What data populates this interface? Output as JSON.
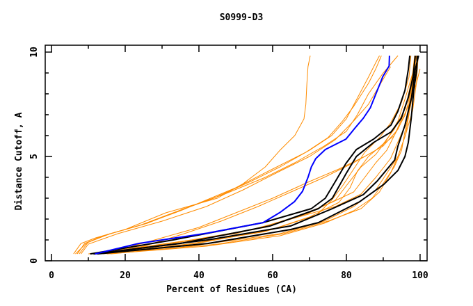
{
  "chart_data": {
    "type": "line",
    "title": "S0999-D3",
    "xlabel": "Percent of Residues (CA)",
    "ylabel": "Distance Cutoff, A",
    "xlim": [
      -1.7,
      101.9
    ],
    "ylim": [
      0,
      10.33
    ],
    "xticks": [
      0,
      20,
      40,
      60,
      80,
      100
    ],
    "xminor": [
      10,
      30,
      50,
      70,
      90
    ],
    "yticks": [
      0,
      5,
      10
    ],
    "yminor": [
      1,
      2,
      3,
      4,
      6,
      7,
      8,
      9
    ],
    "grid": false,
    "colors": {
      "orange": "#ff8c00",
      "black": "#000000",
      "blue": "#0000ff"
    },
    "series": [
      {
        "color": "orange",
        "points": [
          [
            6,
            0.33
          ],
          [
            8,
            0.83
          ],
          [
            12,
            1.1
          ],
          [
            20,
            1.5
          ],
          [
            31,
            2.3
          ],
          [
            45,
            3.0
          ],
          [
            52,
            3.7
          ],
          [
            58,
            4.5
          ],
          [
            62,
            5.3
          ],
          [
            66,
            6.0
          ],
          [
            68.5,
            6.8
          ],
          [
            69,
            7.5
          ],
          [
            69.3,
            8.5
          ],
          [
            69.6,
            9.3
          ],
          [
            70.2,
            9.83
          ]
        ]
      },
      {
        "color": "orange",
        "points": [
          [
            7,
            0.33
          ],
          [
            9,
            0.83
          ],
          [
            14,
            1.2
          ],
          [
            24,
            1.7
          ],
          [
            33,
            2.3
          ],
          [
            44,
            3.0
          ],
          [
            54,
            3.8
          ],
          [
            62,
            4.5
          ],
          [
            70,
            5.3
          ],
          [
            76,
            6.0
          ],
          [
            80,
            6.8
          ],
          [
            83,
            7.8
          ],
          [
            86,
            8.8
          ],
          [
            88,
            9.5
          ],
          [
            89,
            9.83
          ]
        ]
      },
      {
        "color": "orange",
        "points": [
          [
            7.5,
            0.33
          ],
          [
            10,
            0.9
          ],
          [
            16,
            1.3
          ],
          [
            26,
            1.8
          ],
          [
            36,
            2.5
          ],
          [
            47,
            3.2
          ],
          [
            58,
            4.0
          ],
          [
            66,
            4.7
          ],
          [
            74,
            5.5
          ],
          [
            80,
            6.2
          ],
          [
            83,
            7.0
          ],
          [
            86,
            8.0
          ],
          [
            90,
            9.0
          ],
          [
            94,
            9.83
          ]
        ]
      },
      {
        "color": "orange",
        "points": [
          [
            8,
            0.33
          ],
          [
            10,
            0.8
          ],
          [
            18,
            1.3
          ],
          [
            30,
            1.9
          ],
          [
            42,
            2.6
          ],
          [
            52,
            3.4
          ],
          [
            62,
            4.3
          ],
          [
            70,
            5.0
          ],
          [
            77,
            5.8
          ],
          [
            82,
            6.7
          ],
          [
            86,
            7.5
          ],
          [
            90,
            8.7
          ],
          [
            92,
            9.3
          ]
        ]
      },
      {
        "color": "orange",
        "points": [
          [
            6.5,
            0.33
          ],
          [
            9.5,
            0.85
          ],
          [
            15,
            1.25
          ],
          [
            25,
            1.75
          ],
          [
            35,
            2.4
          ],
          [
            50,
            3.5
          ],
          [
            60,
            4.4
          ],
          [
            69,
            5.2
          ],
          [
            75,
            5.9
          ],
          [
            79,
            6.7
          ],
          [
            82,
            7.4
          ],
          [
            86,
            8.5
          ],
          [
            88,
            9.2
          ],
          [
            89.5,
            9.83
          ]
        ]
      },
      {
        "color": "orange",
        "points": [
          [
            10,
            0.33
          ],
          [
            20,
            0.6
          ],
          [
            30,
            1.1
          ],
          [
            40,
            1.6
          ],
          [
            50,
            2.3
          ],
          [
            60,
            3.0
          ],
          [
            70,
            3.8
          ],
          [
            78,
            4.4
          ],
          [
            85,
            5.0
          ],
          [
            90,
            5.5
          ],
          [
            94,
            6.3
          ],
          [
            97,
            7.5
          ],
          [
            99,
            8.5
          ],
          [
            100,
            9.2
          ]
        ]
      },
      {
        "color": "orange",
        "points": [
          [
            12,
            0.33
          ],
          [
            25,
            0.7
          ],
          [
            36,
            1.3
          ],
          [
            46,
            1.9
          ],
          [
            56,
            2.6
          ],
          [
            65,
            3.3
          ],
          [
            74,
            4.0
          ],
          [
            82,
            4.7
          ],
          [
            88,
            5.3
          ],
          [
            93,
            6.0
          ],
          [
            96,
            7.0
          ],
          [
            98,
            8.5
          ],
          [
            99,
            9.5
          ]
        ]
      },
      {
        "color": "orange",
        "points": [
          [
            11,
            0.33
          ],
          [
            35,
            0.9
          ],
          [
            55,
            1.5
          ],
          [
            68,
            2.2
          ],
          [
            76,
            2.8
          ],
          [
            82,
            3.3
          ],
          [
            85,
            4.0
          ],
          [
            88,
            4.7
          ],
          [
            91,
            5.3
          ],
          [
            93,
            6.0
          ],
          [
            95,
            6.8
          ],
          [
            97,
            8.0
          ],
          [
            98,
            9.0
          ],
          [
            98.5,
            9.83
          ]
        ]
      },
      {
        "color": "orange",
        "points": [
          [
            13,
            0.33
          ],
          [
            37,
            0.8
          ],
          [
            58,
            1.4
          ],
          [
            70,
            2.1
          ],
          [
            78,
            2.8
          ],
          [
            81,
            3.5
          ],
          [
            83,
            4.3
          ],
          [
            86,
            5.0
          ],
          [
            90,
            5.6
          ],
          [
            93,
            6.3
          ],
          [
            96,
            7.3
          ],
          [
            97.5,
            8.5
          ],
          [
            99,
            9.83
          ]
        ]
      },
      {
        "color": "orange",
        "points": [
          [
            14,
            0.33
          ],
          [
            40,
            0.85
          ],
          [
            60,
            1.5
          ],
          [
            72,
            2.2
          ],
          [
            76,
            2.9
          ],
          [
            79,
            3.6
          ],
          [
            82,
            4.4
          ],
          [
            85,
            5.2
          ],
          [
            89,
            5.9
          ],
          [
            92,
            6.6
          ],
          [
            95,
            7.6
          ],
          [
            97,
            8.8
          ],
          [
            97.5,
            9.83
          ]
        ]
      },
      {
        "color": "orange",
        "points": [
          [
            15,
            0.33
          ],
          [
            42,
            0.7
          ],
          [
            62,
            1.2
          ],
          [
            74,
            1.8
          ],
          [
            82,
            2.4
          ],
          [
            87,
            3.0
          ],
          [
            90,
            3.7
          ],
          [
            93,
            4.5
          ],
          [
            95,
            5.3
          ],
          [
            96,
            6.3
          ],
          [
            97.5,
            7.5
          ],
          [
            98.5,
            8.6
          ],
          [
            99.5,
            9.83
          ]
        ]
      },
      {
        "color": "orange",
        "points": [
          [
            16,
            0.33
          ],
          [
            45,
            0.8
          ],
          [
            63,
            1.3
          ],
          [
            75,
            1.9
          ],
          [
            84,
            2.5
          ],
          [
            89,
            3.3
          ],
          [
            92,
            4.2
          ],
          [
            94,
            5.0
          ],
          [
            96,
            6.0
          ],
          [
            97,
            7.0
          ],
          [
            98,
            8.5
          ],
          [
            99,
            9.83
          ]
        ]
      },
      {
        "color": "orange",
        "points": [
          [
            12,
            0.33
          ],
          [
            38,
            1.0
          ],
          [
            58,
            1.6
          ],
          [
            70,
            2.3
          ],
          [
            77,
            2.9
          ],
          [
            80,
            3.6
          ],
          [
            84,
            4.5
          ],
          [
            88,
            5.1
          ],
          [
            91,
            5.8
          ],
          [
            94,
            6.7
          ],
          [
            96,
            7.8
          ],
          [
            98,
            9.0
          ],
          [
            99,
            9.83
          ]
        ]
      },
      {
        "color": "orange",
        "points": [
          [
            12,
            0.33
          ],
          [
            30,
            0.8
          ],
          [
            50,
            1.3
          ],
          [
            65,
            2.0
          ],
          [
            77,
            2.6
          ],
          [
            84,
            3.2
          ],
          [
            88,
            4.0
          ],
          [
            92,
            4.9
          ],
          [
            94,
            5.7
          ],
          [
            96,
            6.5
          ],
          [
            97,
            7.5
          ],
          [
            98.5,
            9.2
          ],
          [
            98.7,
            9.83
          ]
        ]
      },
      {
        "color": "orange",
        "points": [
          [
            11,
            0.33
          ],
          [
            33,
            0.6
          ],
          [
            50,
            1.0
          ],
          [
            62,
            1.3
          ],
          [
            74,
            1.9
          ],
          [
            82,
            2.6
          ],
          [
            88,
            3.4
          ],
          [
            91,
            4.2
          ],
          [
            94,
            5.0
          ],
          [
            96,
            6.0
          ],
          [
            98,
            7.2
          ],
          [
            99,
            8.5
          ],
          [
            99.5,
            9.83
          ]
        ]
      },
      {
        "color": "black",
        "points": [
          [
            10.5,
            0.33
          ],
          [
            33,
            1.0
          ],
          [
            57.4,
            1.83
          ],
          [
            70.5,
            2.5
          ],
          [
            74.3,
            3.0
          ],
          [
            77.1,
            3.83
          ],
          [
            79.9,
            4.67
          ],
          [
            82.7,
            5.33
          ],
          [
            87.4,
            5.83
          ],
          [
            92.1,
            6.5
          ],
          [
            94,
            7.17
          ],
          [
            95.9,
            8.17
          ],
          [
            96.8,
            9.17
          ],
          [
            97.2,
            9.83
          ]
        ]
      },
      {
        "color": "black",
        "points": [
          [
            11.4,
            0.33
          ],
          [
            34.9,
            0.83
          ],
          [
            59.3,
            1.67
          ],
          [
            72.4,
            2.5
          ],
          [
            76.2,
            3.0
          ],
          [
            79.9,
            4.17
          ],
          [
            82.7,
            5.0
          ],
          [
            87.4,
            5.67
          ],
          [
            92.1,
            6.17
          ],
          [
            94.9,
            6.83
          ],
          [
            96.8,
            7.83
          ],
          [
            98.1,
            8.83
          ],
          [
            98.7,
            9.83
          ]
        ]
      },
      {
        "color": "black",
        "points": [
          [
            12.4,
            0.33
          ],
          [
            42.4,
            0.83
          ],
          [
            64.9,
            1.5
          ],
          [
            72.4,
            1.83
          ],
          [
            78,
            2.33
          ],
          [
            83.6,
            2.83
          ],
          [
            90.2,
            3.67
          ],
          [
            94,
            4.33
          ],
          [
            95.9,
            5.0
          ],
          [
            96.8,
            5.67
          ],
          [
            97.6,
            6.83
          ],
          [
            98.3,
            8.17
          ],
          [
            99.1,
            9.17
          ],
          [
            99.2,
            9.83
          ]
        ]
      },
      {
        "color": "black",
        "points": [
          [
            11.4,
            0.33
          ],
          [
            42.4,
            1.0
          ],
          [
            64.9,
            1.67
          ],
          [
            76.2,
            2.5
          ],
          [
            84.6,
            3.17
          ],
          [
            88.4,
            3.83
          ],
          [
            93.1,
            4.83
          ],
          [
            94,
            5.5
          ],
          [
            95.9,
            6.5
          ],
          [
            97.7,
            7.83
          ],
          [
            98.7,
            9.17
          ],
          [
            99.6,
            9.83
          ]
        ]
      },
      {
        "color": "blue",
        "points": [
          [
            11.8,
            0.33
          ],
          [
            23.6,
            0.83
          ],
          [
            42.4,
            1.33
          ],
          [
            57.4,
            1.83
          ],
          [
            62.1,
            2.33
          ],
          [
            65.9,
            2.83
          ],
          [
            68.1,
            3.33
          ],
          [
            69.6,
            4.0
          ],
          [
            70.5,
            4.5
          ],
          [
            71.7,
            4.9
          ],
          [
            74.3,
            5.33
          ],
          [
            79.9,
            5.83
          ],
          [
            82.2,
            6.33
          ],
          [
            84.6,
            6.83
          ],
          [
            86.5,
            7.33
          ],
          [
            88.4,
            8.17
          ],
          [
            89.9,
            8.83
          ],
          [
            91.6,
            9.33
          ],
          [
            91.7,
            9.83
          ]
        ]
      }
    ]
  }
}
